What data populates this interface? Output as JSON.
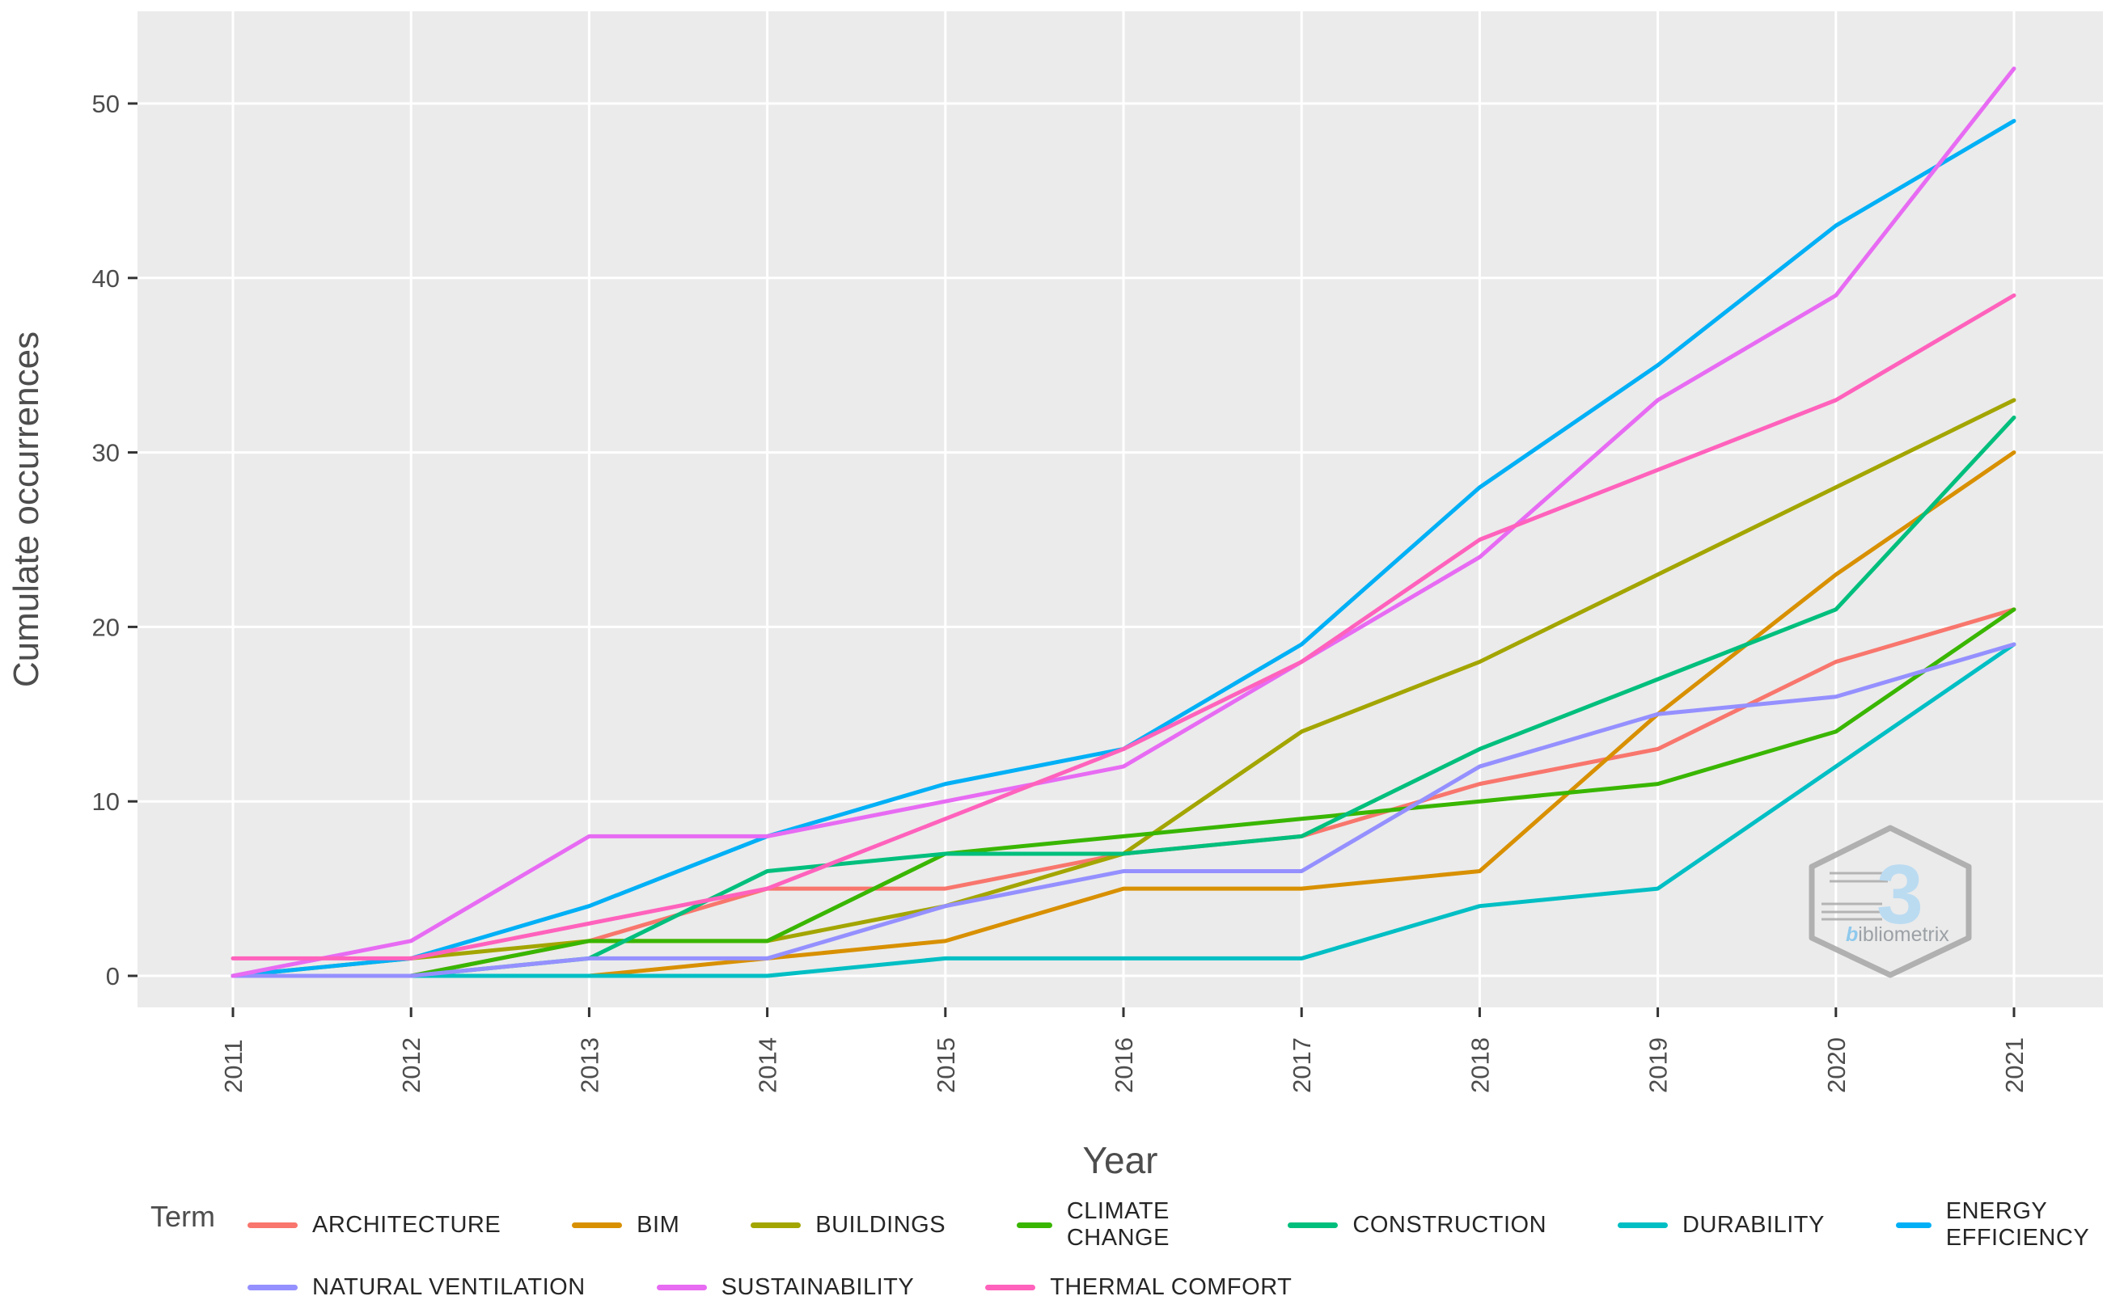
{
  "chart_data": {
    "type": "line",
    "title": "",
    "xlabel": "Year",
    "ylabel": "Cumulate occurrences",
    "legend_title": "Term",
    "legend_position": "bottom",
    "grid": "white major gridlines on gray panel",
    "panel_color": "#EBEBEB",
    "gridline_color": "#FFFFFF",
    "axis_text_color": "#4d4d4d",
    "x": [
      2011,
      2012,
      2013,
      2014,
      2015,
      2016,
      2017,
      2018,
      2019,
      2020,
      2021
    ],
    "y_ticks": [
      0,
      10,
      20,
      30,
      40,
      50
    ],
    "ylim": [
      -2,
      55
    ],
    "series": [
      {
        "name": "ARCHITECTURE",
        "color": "#F8766D",
        "values": [
          0,
          0,
          2,
          5,
          5,
          7,
          8,
          11,
          13,
          18,
          21
        ]
      },
      {
        "name": "BIM",
        "color": "#D89000",
        "values": [
          0,
          0,
          0,
          1,
          2,
          5,
          5,
          6,
          15,
          23,
          30
        ]
      },
      {
        "name": "BUILDINGS",
        "color": "#A3A500",
        "values": [
          0,
          1,
          2,
          2,
          4,
          7,
          14,
          18,
          23,
          28,
          33
        ]
      },
      {
        "name": "CLIMATE CHANGE",
        "color": "#39B600",
        "values": [
          0,
          0,
          2,
          2,
          7,
          8,
          9,
          10,
          11,
          14,
          21
        ]
      },
      {
        "name": "CONSTRUCTION",
        "color": "#00BF7D",
        "values": [
          0,
          0,
          1,
          6,
          7,
          7,
          8,
          13,
          17,
          21,
          32
        ]
      },
      {
        "name": "DURABILITY",
        "color": "#00BFC4",
        "values": [
          0,
          0,
          0,
          0,
          1,
          1,
          1,
          4,
          5,
          12,
          19
        ]
      },
      {
        "name": "ENERGY EFFICIENCY",
        "color": "#00B0F6",
        "values": [
          0,
          1,
          4,
          8,
          11,
          13,
          19,
          28,
          35,
          43,
          49
        ]
      },
      {
        "name": "NATURAL VENTILATION",
        "color": "#9590FF",
        "values": [
          0,
          0,
          1,
          1,
          4,
          6,
          6,
          12,
          15,
          16,
          19
        ]
      },
      {
        "name": "SUSTAINABILITY",
        "color": "#E76BF3",
        "values": [
          0,
          2,
          8,
          8,
          10,
          12,
          18,
          24,
          33,
          39,
          52
        ]
      },
      {
        "name": "THERMAL COMFORT",
        "color": "#FF62BC",
        "values": [
          1,
          1,
          3,
          5,
          9,
          13,
          18,
          25,
          29,
          33,
          39
        ]
      }
    ]
  },
  "watermark": {
    "mark": "3",
    "brand_initial": "b",
    "brand_rest": "ibliometrix"
  }
}
